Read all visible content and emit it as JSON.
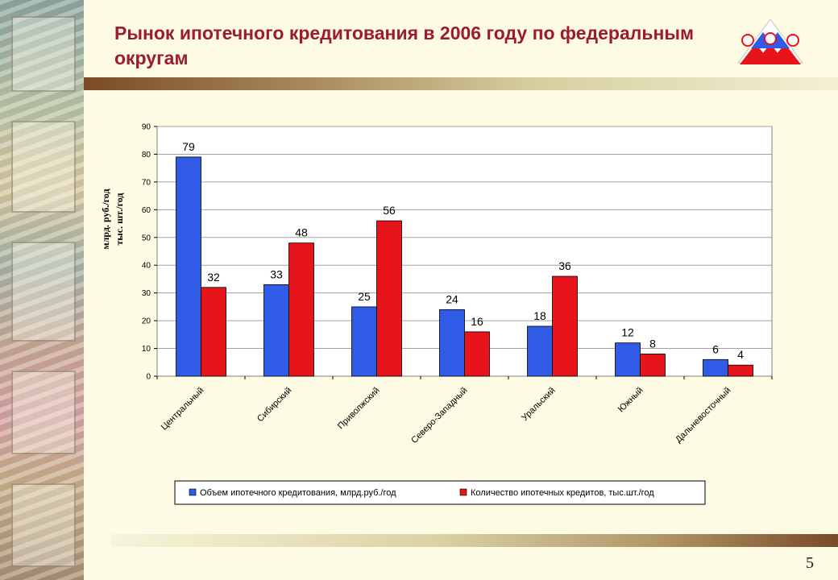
{
  "slide": {
    "title": "Рынок ипотечного кредитования в 2006 году по федеральным округам",
    "page_number": "5"
  },
  "colors": {
    "series1": "#2f5be6",
    "series2": "#e8141c",
    "title": "#9c1c2b"
  },
  "chart_data": {
    "type": "bar",
    "title": "",
    "xlabel": "",
    "ylabel": [
      "млрд. руб./год",
      "тыс. шт./год"
    ],
    "ylim": [
      0,
      90
    ],
    "yticks": [
      0,
      10,
      20,
      30,
      40,
      50,
      60,
      70,
      80,
      90
    ],
    "grid": true,
    "legend_position": "bottom",
    "categories": [
      "Центральный",
      "Сибирский",
      "Приволжский",
      "Северо-Западный",
      "Уральский",
      "Южный",
      "Дальневосточный"
    ],
    "series": [
      {
        "name": "Объем ипотечного кредитования, млрд.руб./год",
        "values": [
          79,
          33,
          25,
          24,
          18,
          12,
          6
        ]
      },
      {
        "name": "Количество ипотечных кредитов, тыс.шт./год",
        "values": [
          32,
          48,
          56,
          16,
          36,
          8,
          4
        ]
      }
    ]
  }
}
